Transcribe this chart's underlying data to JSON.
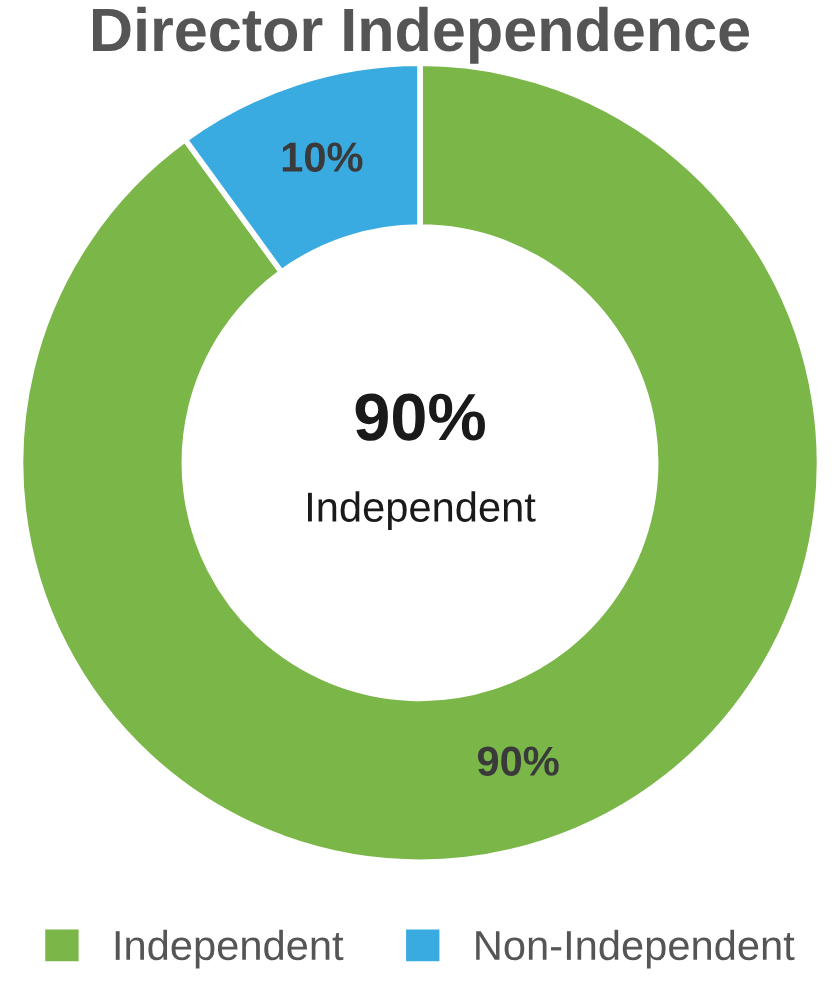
{
  "chart_data": {
    "type": "donut",
    "title": "Director Independence",
    "categories": [
      "Independent",
      "Non-Independent"
    ],
    "values": [
      90,
      10
    ],
    "colors": [
      "#7ab648",
      "#3aabe0"
    ],
    "value_labels": [
      "90%",
      "10%"
    ],
    "annotations": [
      "90%",
      "Independent"
    ],
    "legend": "bottom"
  }
}
